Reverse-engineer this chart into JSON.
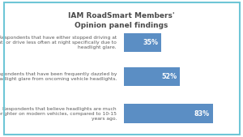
{
  "title": "IAM RoadSmart Members'\nOpinion panel findings",
  "categories": [
    "Respondents that have either stopped driving at\nnight, or drive less often at night specifically due to\nheadlight glare.",
    "Respondents that have been frequently dazzled by\nheadlight glare from oncoming vehicle headlights.",
    "Respondents that believe headlights are much\nbrighter on modern vehicles, compared to 10-15\nyears ago."
  ],
  "values": [
    35,
    52,
    83
  ],
  "bar_color": "#5b8ec4",
  "label_color": "#ffffff",
  "title_color": "#4a4a4a",
  "category_color": "#5a5a5a",
  "background_color": "#ffffff",
  "border_color": "#6ec6d6",
  "xlim": [
    0,
    100
  ],
  "title_fontsize": 6.5,
  "category_fontsize": 4.3,
  "value_fontsize": 5.8
}
